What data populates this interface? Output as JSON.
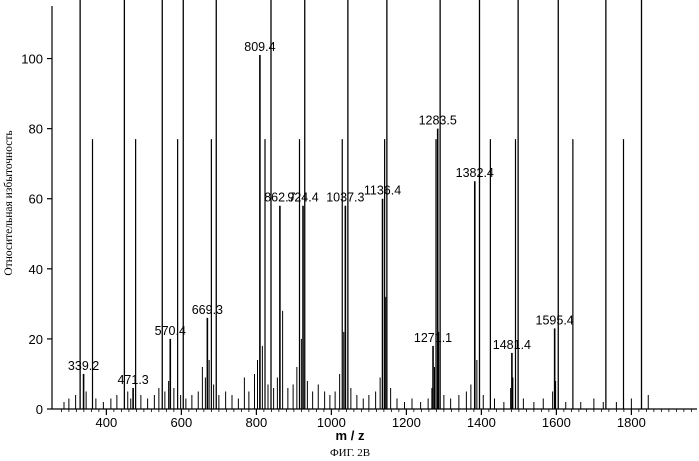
{
  "figure": {
    "caption": "ФИГ. 2В"
  },
  "chart_data": {
    "type": "bar",
    "xlabel": "m / z",
    "ylabel": "Относительная избыточность",
    "xlim": [
      255,
      1975
    ],
    "ylim": [
      0,
      115
    ],
    "xticks": [
      400,
      600,
      800,
      1000,
      1200,
      1400,
      1600,
      1800
    ],
    "yticks": [
      0,
      20,
      40,
      60,
      80,
      100
    ],
    "labeled_peaks": [
      {
        "mz": 339.2,
        "label": "339.2",
        "intensity": 10
      },
      {
        "mz": 471.3,
        "label": "471.3",
        "intensity": 6
      },
      {
        "mz": 570.4,
        "label": "570.4",
        "intensity": 20
      },
      {
        "mz": 669.3,
        "label": "669.3",
        "intensity": 26
      },
      {
        "mz": 809.4,
        "label": "809.4",
        "intensity": 101
      },
      {
        "mz": 862.7,
        "label": "862.7",
        "intensity": 58
      },
      {
        "mz": 924.4,
        "label": "924.4",
        "intensity": 58
      },
      {
        "mz": 1037.3,
        "label": "1037.3",
        "intensity": 58
      },
      {
        "mz": 1136.4,
        "label": "1136.4",
        "intensity": 60
      },
      {
        "mz": 1271.1,
        "label": "1271.1",
        "intensity": 18
      },
      {
        "mz": 1283.5,
        "label": "1283.5",
        "intensity": 80
      },
      {
        "mz": 1382.4,
        "label": "1382.4",
        "intensity": 65
      },
      {
        "mz": 1481.4,
        "label": "1481.4",
        "intensity": 16
      },
      {
        "mz": 1595.4,
        "label": "1595.4",
        "intensity": 23
      }
    ],
    "overflow_lines": [
      330,
      448,
      549,
      605,
      693,
      839,
      929,
      1044,
      1148,
      1290,
      1395,
      1498,
      1605,
      1732,
      1827
    ],
    "tall_lines": [
      {
        "mz": 363,
        "intensity": 77
      },
      {
        "mz": 478,
        "intensity": 77
      },
      {
        "mz": 590,
        "intensity": 77
      },
      {
        "mz": 680,
        "intensity": 77
      },
      {
        "mz": 823,
        "intensity": 77
      },
      {
        "mz": 915,
        "intensity": 77
      },
      {
        "mz": 1029,
        "intensity": 77
      },
      {
        "mz": 1142,
        "intensity": 77
      },
      {
        "mz": 1279,
        "intensity": 77
      },
      {
        "mz": 1424,
        "intensity": 77
      },
      {
        "mz": 1491,
        "intensity": 77
      },
      {
        "mz": 1644,
        "intensity": 77
      },
      {
        "mz": 1779,
        "intensity": 77
      }
    ],
    "minor_peaks": [
      {
        "mz": 287,
        "intensity": 2
      },
      {
        "mz": 300,
        "intensity": 3
      },
      {
        "mz": 318,
        "intensity": 4
      },
      {
        "mz": 346,
        "intensity": 5
      },
      {
        "mz": 372,
        "intensity": 3
      },
      {
        "mz": 392,
        "intensity": 2
      },
      {
        "mz": 412,
        "intensity": 3
      },
      {
        "mz": 428,
        "intensity": 4
      },
      {
        "mz": 457,
        "intensity": 5
      },
      {
        "mz": 465,
        "intensity": 3
      },
      {
        "mz": 492,
        "intensity": 4
      },
      {
        "mz": 510,
        "intensity": 3
      },
      {
        "mz": 528,
        "intensity": 4
      },
      {
        "mz": 540,
        "intensity": 6
      },
      {
        "mz": 556,
        "intensity": 5
      },
      {
        "mz": 566,
        "intensity": 8
      },
      {
        "mz": 580,
        "intensity": 6
      },
      {
        "mz": 598,
        "intensity": 4
      },
      {
        "mz": 612,
        "intensity": 3
      },
      {
        "mz": 628,
        "intensity": 4
      },
      {
        "mz": 645,
        "intensity": 5
      },
      {
        "mz": 656,
        "intensity": 12
      },
      {
        "mz": 664,
        "intensity": 9
      },
      {
        "mz": 674,
        "intensity": 14
      },
      {
        "mz": 686,
        "intensity": 7
      },
      {
        "mz": 700,
        "intensity": 4
      },
      {
        "mz": 718,
        "intensity": 5
      },
      {
        "mz": 735,
        "intensity": 4
      },
      {
        "mz": 752,
        "intensity": 3
      },
      {
        "mz": 768,
        "intensity": 9
      },
      {
        "mz": 780,
        "intensity": 5
      },
      {
        "mz": 795,
        "intensity": 10
      },
      {
        "mz": 803,
        "intensity": 14
      },
      {
        "mz": 816,
        "intensity": 18
      },
      {
        "mz": 831,
        "intensity": 7
      },
      {
        "mz": 846,
        "intensity": 6
      },
      {
        "mz": 856,
        "intensity": 9
      },
      {
        "mz": 870,
        "intensity": 28
      },
      {
        "mz": 884,
        "intensity": 6
      },
      {
        "mz": 898,
        "intensity": 7
      },
      {
        "mz": 908,
        "intensity": 12
      },
      {
        "mz": 920,
        "intensity": 20
      },
      {
        "mz": 936,
        "intensity": 8
      },
      {
        "mz": 950,
        "intensity": 5
      },
      {
        "mz": 965,
        "intensity": 7
      },
      {
        "mz": 982,
        "intensity": 5
      },
      {
        "mz": 996,
        "intensity": 4
      },
      {
        "mz": 1010,
        "intensity": 5
      },
      {
        "mz": 1022,
        "intensity": 10
      },
      {
        "mz": 1033,
        "intensity": 22
      },
      {
        "mz": 1052,
        "intensity": 6
      },
      {
        "mz": 1068,
        "intensity": 4
      },
      {
        "mz": 1085,
        "intensity": 3
      },
      {
        "mz": 1100,
        "intensity": 4
      },
      {
        "mz": 1118,
        "intensity": 5
      },
      {
        "mz": 1130,
        "intensity": 9
      },
      {
        "mz": 1145,
        "intensity": 32
      },
      {
        "mz": 1158,
        "intensity": 6
      },
      {
        "mz": 1175,
        "intensity": 3
      },
      {
        "mz": 1195,
        "intensity": 2
      },
      {
        "mz": 1215,
        "intensity": 3
      },
      {
        "mz": 1238,
        "intensity": 2
      },
      {
        "mz": 1258,
        "intensity": 3
      },
      {
        "mz": 1268,
        "intensity": 6
      },
      {
        "mz": 1275,
        "intensity": 12
      },
      {
        "mz": 1286,
        "intensity": 22
      },
      {
        "mz": 1300,
        "intensity": 4
      },
      {
        "mz": 1318,
        "intensity": 3
      },
      {
        "mz": 1340,
        "intensity": 4
      },
      {
        "mz": 1360,
        "intensity": 5
      },
      {
        "mz": 1372,
        "intensity": 7
      },
      {
        "mz": 1388,
        "intensity": 14
      },
      {
        "mz": 1405,
        "intensity": 4
      },
      {
        "mz": 1435,
        "intensity": 3
      },
      {
        "mz": 1460,
        "intensity": 2
      },
      {
        "mz": 1478,
        "intensity": 6
      },
      {
        "mz": 1484,
        "intensity": 9
      },
      {
        "mz": 1512,
        "intensity": 3
      },
      {
        "mz": 1540,
        "intensity": 2
      },
      {
        "mz": 1565,
        "intensity": 3
      },
      {
        "mz": 1590,
        "intensity": 5
      },
      {
        "mz": 1598,
        "intensity": 8
      },
      {
        "mz": 1625,
        "intensity": 2
      },
      {
        "mz": 1665,
        "intensity": 2
      },
      {
        "mz": 1700,
        "intensity": 3
      },
      {
        "mz": 1725,
        "intensity": 2
      },
      {
        "mz": 1760,
        "intensity": 2
      },
      {
        "mz": 1800,
        "intensity": 3
      },
      {
        "mz": 1845,
        "intensity": 4
      }
    ],
    "colors": {
      "ink": "#000000",
      "background": "#ffffff"
    }
  }
}
